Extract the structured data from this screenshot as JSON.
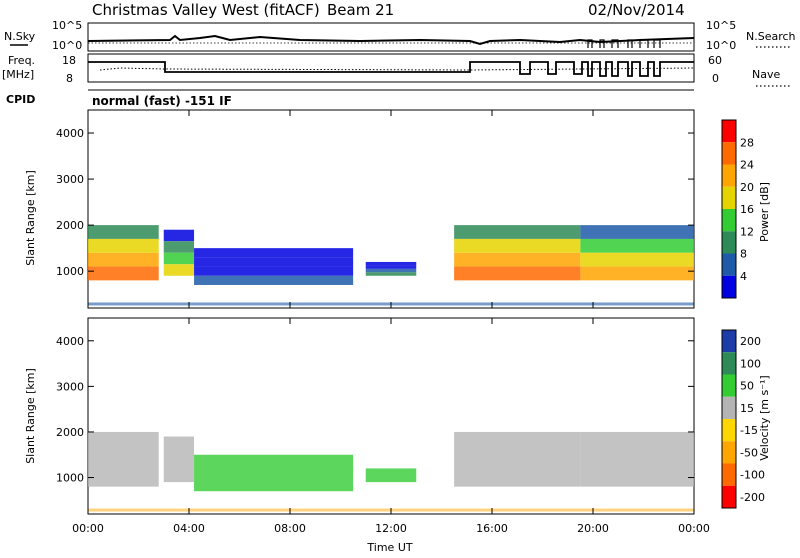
{
  "header": {
    "station_title": "Christmas Valley West (fitACF)",
    "beam": "Beam 21",
    "date": "02/Nov/2014"
  },
  "top_panels": {
    "nsky_label": "N.Sky",
    "nsky_ticks": [
      "10^5",
      "10^0"
    ],
    "nsearch_label": "N.Search",
    "nsearch_ticks": [
      "10^5",
      "10^0"
    ],
    "freq_label": "Freq.",
    "freq_unit": "[MHz]",
    "freq_ticks": [
      "18",
      "8"
    ],
    "nave_label": "Nave",
    "nave_ticks": [
      "60",
      "0"
    ],
    "cpid_label": "CPID",
    "cpid_value": "normal (fast) -151 IF"
  },
  "chart_data": [
    {
      "type": "heatmap",
      "name": "power",
      "ylabel": "Slant Range [km]",
      "yticks": [
        "4000",
        "3000",
        "2000",
        "1000"
      ],
      "ylim": [
        200,
        4500
      ],
      "xlim": [
        0,
        24
      ],
      "colorbar_label": "Power [dB]",
      "colorbar_ticks": [
        "28",
        "24",
        "20",
        "16",
        "12",
        "8",
        "4"
      ],
      "colorbar_colors": [
        "#ff0000",
        "#ff6a00",
        "#ffa500",
        "#e6d400",
        "#33cc33",
        "#2e8b57",
        "#1e5aa8",
        "#0000e0"
      ],
      "features": [
        {
          "t0": 0.0,
          "t1": 2.8,
          "r0": 800,
          "r1": 2000,
          "level": 24
        },
        {
          "t0": 3.0,
          "t1": 4.2,
          "r0": 900,
          "r1": 1900,
          "level": 16
        },
        {
          "t0": 4.2,
          "t1": 10.5,
          "r0": 700,
          "r1": 1500,
          "level": 6
        },
        {
          "t0": 11.0,
          "t1": 13.0,
          "r0": 900,
          "r1": 1200,
          "level": 8
        },
        {
          "t0": 14.5,
          "t1": 19.5,
          "r0": 800,
          "r1": 2000,
          "level": 24
        },
        {
          "t0": 19.5,
          "t1": 24.0,
          "r0": 800,
          "r1": 2000,
          "level": 22
        }
      ]
    },
    {
      "type": "heatmap",
      "name": "velocity",
      "ylabel": "Slant Range [km]",
      "yticks": [
        "4000",
        "3000",
        "2000",
        "1000"
      ],
      "ylim": [
        200,
        4500
      ],
      "xlim": [
        0,
        24
      ],
      "xlabel": "Time UT",
      "xticks": [
        "00:00",
        "04:00",
        "08:00",
        "12:00",
        "16:00",
        "20:00",
        "00:00"
      ],
      "colorbar_label": "Velocity [m s⁻¹]",
      "colorbar_ticks": [
        "200",
        "100",
        "50",
        "15",
        "-15",
        "-50",
        "-100",
        "-200"
      ],
      "colorbar_colors": [
        "#1e3ca8",
        "#2e8b57",
        "#33cc33",
        "#b4b4b4",
        "#ffd700",
        "#ffa500",
        "#ff6a00",
        "#ff0000"
      ]
    }
  ]
}
